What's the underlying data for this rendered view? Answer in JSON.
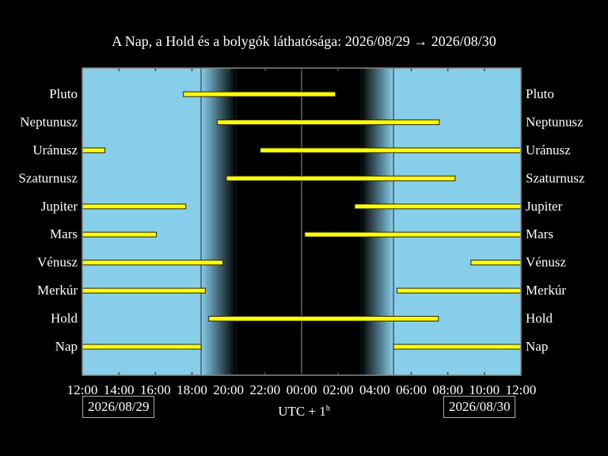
{
  "chart_data": {
    "type": "timeline",
    "title": "A Nap, a Hold és a bolygók láthatósága: 2026/08/29 → 2026/08/30",
    "x_range": [
      "2026/08/29 12:00",
      "2026/08/30 12:00"
    ],
    "x_tick_labels": [
      "12:00",
      "14:00",
      "16:00",
      "18:00",
      "20:00",
      "22:00",
      "00:00",
      "02:00",
      "04:00",
      "06:00",
      "08:00",
      "10:00",
      "12:00"
    ],
    "xlabel": "UTC + 1",
    "xlabel_sup": "h",
    "start_date_label": "2026/08/29",
    "end_date_label": "2026/08/30",
    "sunset": "2026/08/29 18:30",
    "dark_start": "2026/08/29 20:25",
    "dark_end": "2026/08/30 03:14",
    "sunrise": "2026/08/30 05:02",
    "colors": {
      "day": "#87ceeb",
      "night": "#000000",
      "bar": "#ffff00"
    },
    "rows": [
      {
        "name": "Pluto",
        "segments": [
          [
            "2026/08/29 17:32",
            "2026/08/30 01:51"
          ]
        ]
      },
      {
        "name": "Neptunusz",
        "segments": [
          [
            "2026/08/29 19:23",
            "2026/08/30 07:32"
          ]
        ]
      },
      {
        "name": "Uránusz",
        "segments": [
          [
            "2026/08/29 12:00",
            "2026/08/29 13:14"
          ],
          [
            "2026/08/29 21:44",
            "2026/08/30 12:00"
          ]
        ]
      },
      {
        "name": "Szaturnusz",
        "segments": [
          [
            "2026/08/29 19:53",
            "2026/08/30 08:24"
          ]
        ]
      },
      {
        "name": "Jupiter",
        "segments": [
          [
            "2026/08/29 12:00",
            "2026/08/29 17:40"
          ],
          [
            "2026/08/30 02:54",
            "2026/08/30 12:00"
          ]
        ]
      },
      {
        "name": "Mars",
        "segments": [
          [
            "2026/08/29 12:00",
            "2026/08/29 16:03"
          ],
          [
            "2026/08/30 00:10",
            "2026/08/30 12:00"
          ]
        ]
      },
      {
        "name": "Vénusz",
        "segments": [
          [
            "2026/08/29 12:00",
            "2026/08/29 19:41"
          ],
          [
            "2026/08/30 09:16",
            "2026/08/30 12:00"
          ]
        ]
      },
      {
        "name": "Merkúr",
        "segments": [
          [
            "2026/08/29 12:00",
            "2026/08/29 18:44"
          ],
          [
            "2026/08/30 05:13",
            "2026/08/30 12:00"
          ]
        ]
      },
      {
        "name": "Hold",
        "segments": [
          [
            "2026/08/29 18:55",
            "2026/08/30 07:29"
          ]
        ]
      },
      {
        "name": "Nap",
        "segments": [
          [
            "2026/08/29 12:00",
            "2026/08/29 18:30"
          ],
          [
            "2026/08/30 05:02",
            "2026/08/30 12:00"
          ]
        ]
      }
    ]
  }
}
